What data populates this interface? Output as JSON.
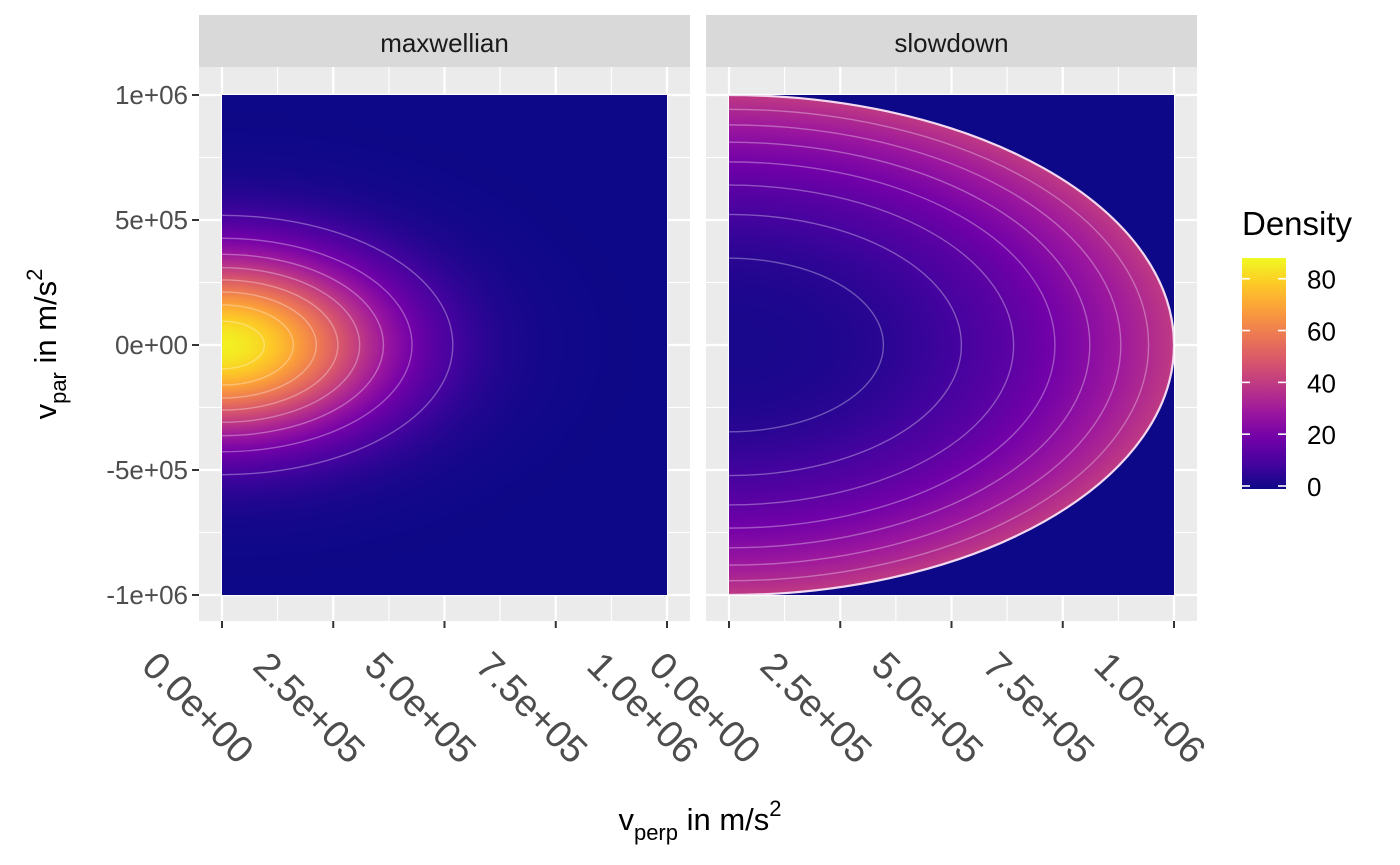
{
  "chart_data": {
    "type": "heatmap",
    "panels": [
      {
        "name": "maxwellian",
        "distribution": "maxwellian",
        "contour_levels": [
          10,
          20,
          30,
          40,
          50,
          60,
          70,
          80
        ]
      },
      {
        "name": "slowdown",
        "distribution": "slowdown",
        "contour_levels": [
          5,
          10,
          15,
          20,
          25,
          30,
          35,
          40
        ]
      }
    ],
    "x_axis": {
      "label_main": "v",
      "label_sub": "perp",
      "label_rest": " in m/s",
      "label_sup": "2",
      "range": [
        0,
        1000000
      ],
      "ticks": [
        0,
        250000,
        500000,
        750000,
        1000000
      ],
      "tick_labels": [
        "0.0e+00",
        "2.5e+05",
        "5.0e+05",
        "7.5e+05",
        "1.0e+06"
      ]
    },
    "y_axis": {
      "label_main": "v",
      "label_sub": "par",
      "label_rest": " in m/s",
      "label_sup": "2",
      "range": [
        -1000000,
        1000000
      ],
      "ticks": [
        1000000,
        500000,
        0,
        -500000,
        -1000000
      ],
      "tick_labels": [
        "1e+06",
        "5e+05",
        "0e+00",
        "-5e+05",
        "-1e+06"
      ]
    },
    "legend": {
      "title": "Density",
      "placement": "right",
      "range": [
        0,
        88
      ],
      "ticks": [
        80,
        60,
        40,
        20,
        0
      ],
      "tick_labels": [
        "80",
        "60",
        "40",
        "20",
        "0"
      ]
    },
    "colorscale": "plasma",
    "colors": [
      "#0d0887",
      "#46039f",
      "#7201a8",
      "#9c179e",
      "#bd3786",
      "#d8576b",
      "#ed7953",
      "#fb9f3a",
      "#fdca26",
      "#f0f921"
    ],
    "grid": true,
    "panel_background": "#ebebeb",
    "strip_background": "#d9d9d9"
  }
}
